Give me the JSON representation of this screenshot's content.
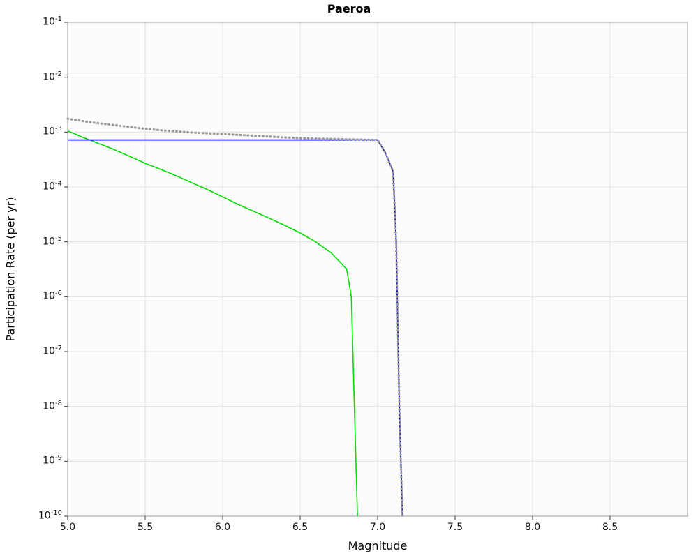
{
  "chart_data": {
    "type": "line",
    "title": "Paeroa",
    "xlabel": "Magnitude",
    "ylabel": "Participation Rate (per yr)",
    "xlim": [
      5.0,
      9.0
    ],
    "ylim": [
      1e-10,
      0.1
    ],
    "grid": true,
    "legend": "none",
    "background": "#fcfcfc",
    "grid_color": "#e0e0e0",
    "border_color": "#9e9e9e",
    "tick_color": "#333333",
    "x_ticks": [
      {
        "value": 5.0,
        "label": "5.0"
      },
      {
        "value": 5.5,
        "label": "5.5"
      },
      {
        "value": 6.0,
        "label": "6.0"
      },
      {
        "value": 6.5,
        "label": "6.5"
      },
      {
        "value": 7.0,
        "label": "7.0"
      },
      {
        "value": 7.5,
        "label": "7.5"
      },
      {
        "value": 8.0,
        "label": "8.0"
      },
      {
        "value": 8.5,
        "label": "8.5"
      }
    ],
    "y_ticks": [
      {
        "base": "10",
        "exp": -1
      },
      {
        "base": "10",
        "exp": -2
      },
      {
        "base": "10",
        "exp": -3
      },
      {
        "base": "10",
        "exp": -4
      },
      {
        "base": "10",
        "exp": -5
      },
      {
        "base": "10",
        "exp": -6
      },
      {
        "base": "10",
        "exp": -7
      },
      {
        "base": "10",
        "exp": -8
      },
      {
        "base": "10",
        "exp": -9
      },
      {
        "base": "10",
        "exp": -10
      }
    ],
    "series": [
      {
        "name": "green-curve",
        "color": "#00dd00",
        "style": "solid",
        "width": 1.6,
        "points": [
          [
            5.0,
            0.00105
          ],
          [
            5.1,
            0.0008
          ],
          [
            5.2,
            0.00062
          ],
          [
            5.3,
            0.00048
          ],
          [
            5.4,
            0.00036
          ],
          [
            5.5,
            0.00027
          ],
          [
            5.6,
            0.00021
          ],
          [
            5.7,
            0.00016
          ],
          [
            5.8,
            0.00012
          ],
          [
            5.9,
            9e-05
          ],
          [
            6.0,
            6.6e-05
          ],
          [
            6.1,
            4.8e-05
          ],
          [
            6.2,
            3.6e-05
          ],
          [
            6.3,
            2.7e-05
          ],
          [
            6.4,
            2e-05
          ],
          [
            6.5,
            1.45e-05
          ],
          [
            6.6,
            1e-05
          ],
          [
            6.7,
            6.3e-06
          ],
          [
            6.8,
            3.2e-06
          ],
          [
            6.83,
            1e-06
          ],
          [
            6.85,
            1e-08
          ],
          [
            6.87,
            1e-10
          ]
        ]
      },
      {
        "name": "blue-curve",
        "color": "#0000cc",
        "style": "solid",
        "width": 1.8,
        "points": [
          [
            5.0,
            0.00072
          ],
          [
            7.0,
            0.00072
          ],
          [
            7.05,
            0.00042
          ],
          [
            7.1,
            0.00019
          ],
          [
            7.12,
            1e-05
          ],
          [
            7.14,
            1e-08
          ],
          [
            7.16,
            1e-10
          ]
        ]
      },
      {
        "name": "gray-dotted-curve",
        "color": "#999999",
        "style": "dotted",
        "width": 3.2,
        "points": [
          [
            5.0,
            0.00175
          ],
          [
            5.1,
            0.00158
          ],
          [
            5.2,
            0.00145
          ],
          [
            5.3,
            0.00134
          ],
          [
            5.4,
            0.00124
          ],
          [
            5.5,
            0.00115
          ],
          [
            5.6,
            0.00108
          ],
          [
            5.7,
            0.00103
          ],
          [
            5.8,
            0.00098
          ],
          [
            5.9,
            0.00095
          ],
          [
            6.0,
            0.00092
          ],
          [
            6.1,
            0.00089
          ],
          [
            6.2,
            0.00086
          ],
          [
            6.4,
            0.0008
          ],
          [
            6.6,
            0.00076
          ],
          [
            6.8,
            0.00074
          ],
          [
            7.0,
            0.00072
          ],
          [
            7.05,
            0.00042
          ],
          [
            7.1,
            0.00019
          ],
          [
            7.12,
            1e-05
          ],
          [
            7.14,
            1e-08
          ],
          [
            7.16,
            1e-10
          ]
        ]
      }
    ]
  }
}
